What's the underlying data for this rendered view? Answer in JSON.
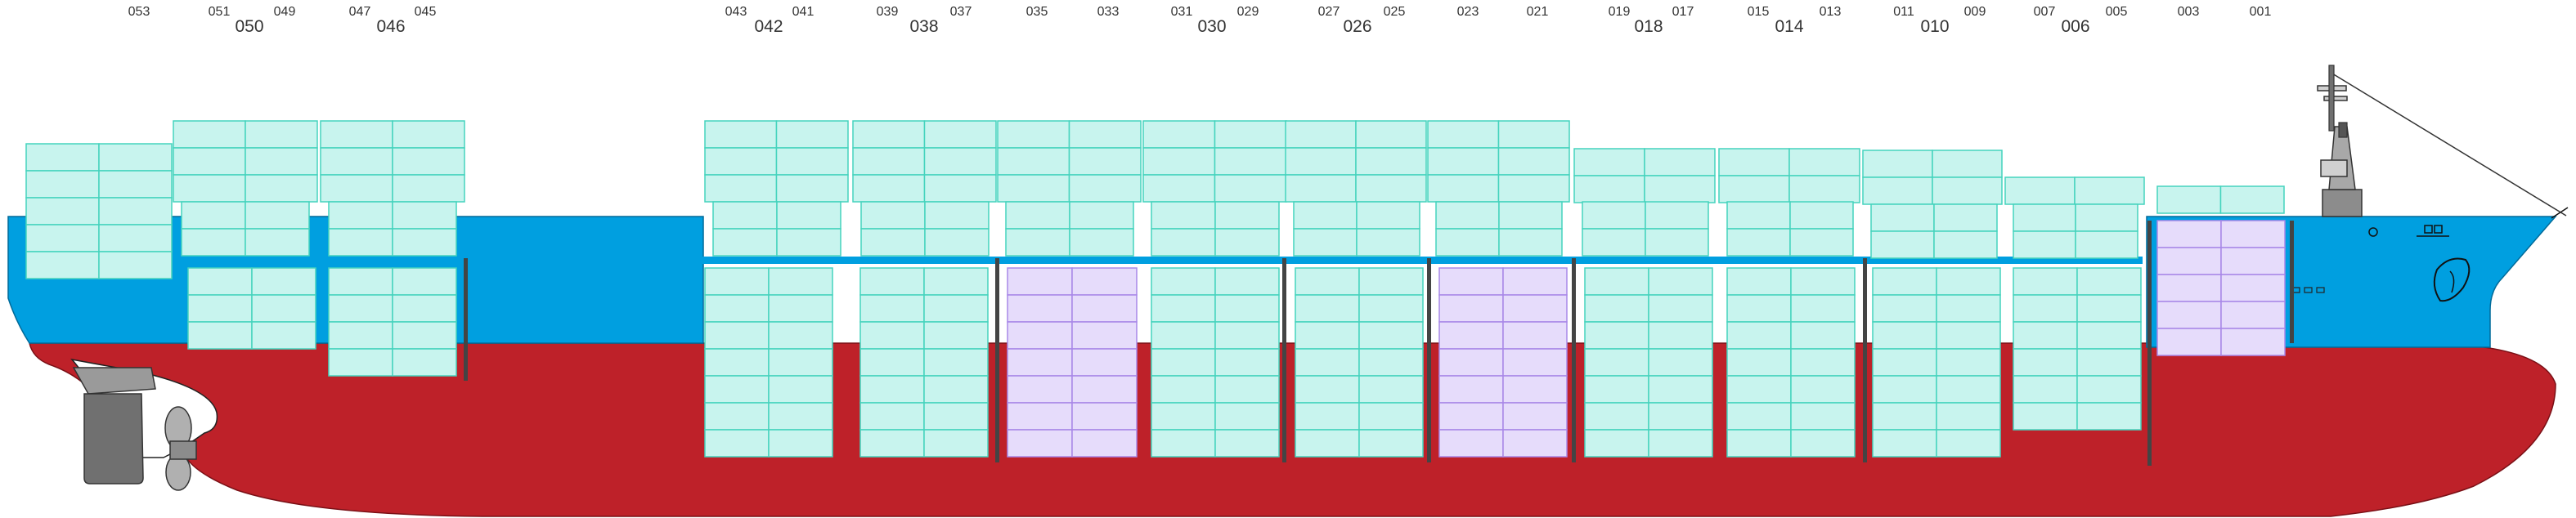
{
  "colors": {
    "hull_red": "#be2129",
    "upper_blue": "#009fe0",
    "cell_fill": "#c8f4ee",
    "cell_border": "#45d3bd",
    "reefer_fill": "#e6dcfb",
    "reefer_border": "#a888e8",
    "bulkhead": "#444444",
    "rudder_grey": "#707070"
  },
  "bay_labels": {
    "small": [
      "053",
      "051",
      "049",
      "047",
      "045",
      "043",
      "041",
      "039",
      "037",
      "035",
      "033",
      "031",
      "029",
      "027",
      "025",
      "023",
      "021",
      "019",
      "017",
      "015",
      "013",
      "011",
      "009",
      "007",
      "005",
      "003",
      "001"
    ],
    "large": [
      "050",
      "046",
      "042",
      "038",
      "030",
      "026",
      "018",
      "014",
      "010",
      "006"
    ]
  },
  "legend": {
    "title": "",
    "items": []
  }
}
